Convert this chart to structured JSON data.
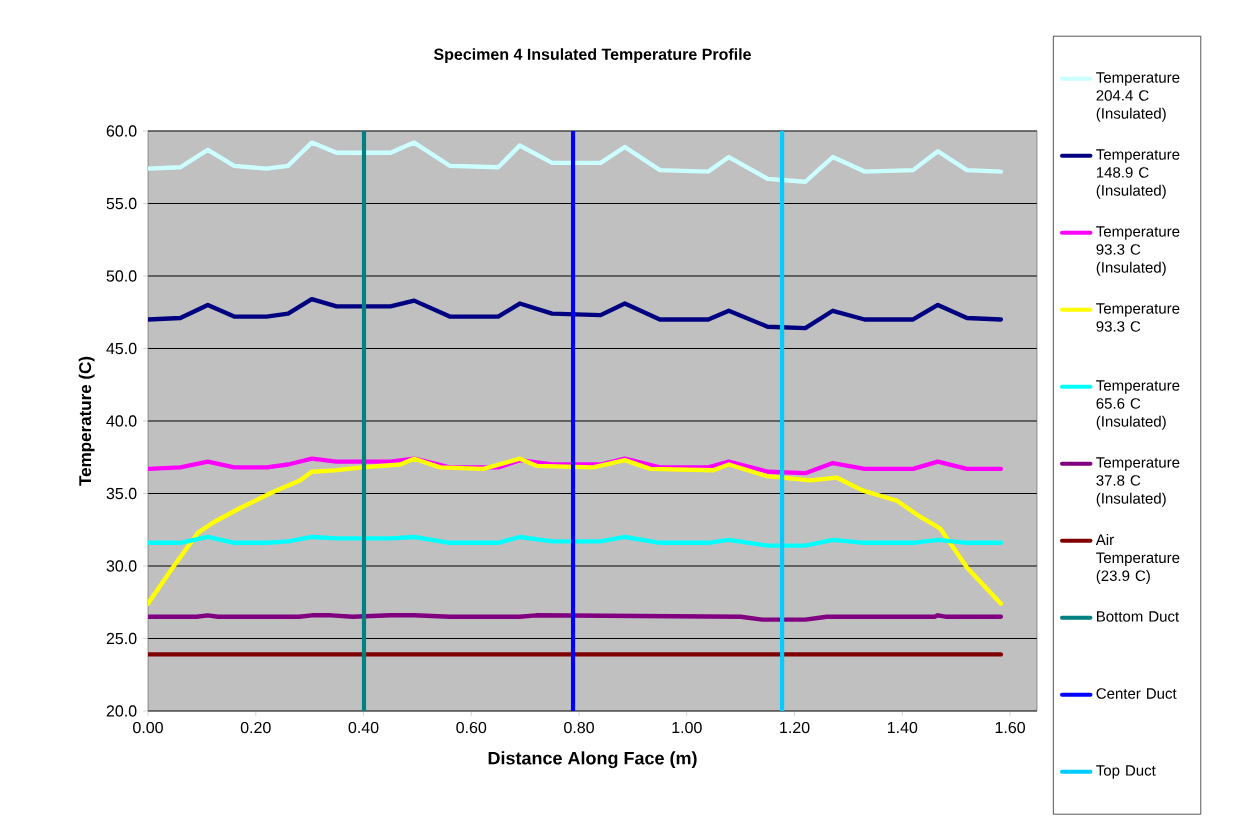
{
  "chart_data": {
    "type": "line",
    "title": "Specimen 4  Insulated Temperature Profile",
    "xlabel": "Distance Along Face (m)",
    "ylabel": "Temperature (C)",
    "xlim": [
      0,
      1.65
    ],
    "ylim": [
      20,
      60
    ],
    "xticks": [
      {
        "value": 0,
        "label": "0.00"
      },
      {
        "value": 0.2,
        "label": "0.20"
      },
      {
        "value": 0.4,
        "label": "0.40"
      },
      {
        "value": 0.6,
        "label": "0.60"
      },
      {
        "value": 0.8,
        "label": "0.80"
      },
      {
        "value": 1.0,
        "label": "1.00"
      },
      {
        "value": 1.2,
        "label": "1.20"
      },
      {
        "value": 1.4,
        "label": "1.40"
      },
      {
        "value": 1.6,
        "label": "1.60"
      }
    ],
    "yticks": [
      {
        "value": 20,
        "label": "20.0"
      },
      {
        "value": 25,
        "label": "25.0"
      },
      {
        "value": 30,
        "label": "30.0"
      },
      {
        "value": 35,
        "label": "35.0"
      },
      {
        "value": 40,
        "label": "40.0"
      },
      {
        "value": 45,
        "label": "45.0"
      },
      {
        "value": 50,
        "label": "50.0"
      },
      {
        "value": 55,
        "label": "55.0"
      },
      {
        "value": 60,
        "label": "60.0"
      }
    ],
    "grid": "y",
    "legend": "right",
    "series": [
      {
        "name": "Temperature 204.4 C (Insulated)",
        "color": "#ccffff",
        "x": [
          0,
          0.06,
          0.111,
          0.16,
          0.22,
          0.26,
          0.304,
          0.35,
          0.45,
          0.494,
          0.56,
          0.65,
          0.69,
          0.75,
          0.84,
          0.885,
          0.95,
          1.04,
          1.078,
          1.15,
          1.22,
          1.271,
          1.33,
          1.42,
          1.466,
          1.52,
          1.583
        ],
        "values": [
          57.4,
          57.5,
          58.7,
          57.6,
          57.4,
          57.6,
          59.2,
          58.5,
          58.5,
          59.2,
          57.6,
          57.5,
          59.0,
          57.8,
          57.8,
          58.9,
          57.3,
          57.2,
          58.2,
          56.7,
          56.5,
          58.2,
          57.2,
          57.3,
          58.6,
          57.3,
          57.2
        ]
      },
      {
        "name": "Temperature 148.9 C (Insulated)",
        "color": "#000080",
        "x": [
          0,
          0.06,
          0.111,
          0.16,
          0.22,
          0.26,
          0.304,
          0.35,
          0.45,
          0.494,
          0.56,
          0.65,
          0.69,
          0.75,
          0.84,
          0.885,
          0.95,
          1.04,
          1.078,
          1.15,
          1.22,
          1.271,
          1.33,
          1.42,
          1.466,
          1.52,
          1.583
        ],
        "values": [
          47.0,
          47.1,
          48.0,
          47.2,
          47.2,
          47.4,
          48.4,
          47.9,
          47.9,
          48.3,
          47.2,
          47.2,
          48.1,
          47.4,
          47.3,
          48.1,
          47.0,
          47.0,
          47.6,
          46.5,
          46.4,
          47.6,
          47.0,
          47.0,
          48.0,
          47.1,
          47.0
        ]
      },
      {
        "name": "Temperature 93.3 C (Insulated)",
        "color": "#ff00ff",
        "x": [
          0,
          0.06,
          0.111,
          0.16,
          0.22,
          0.26,
          0.304,
          0.35,
          0.45,
          0.494,
          0.56,
          0.65,
          0.69,
          0.75,
          0.84,
          0.885,
          0.95,
          1.04,
          1.078,
          1.15,
          1.22,
          1.271,
          1.33,
          1.42,
          1.466,
          1.52,
          1.583
        ],
        "values": [
          36.7,
          36.8,
          37.2,
          36.8,
          36.8,
          37.0,
          37.4,
          37.2,
          37.2,
          37.4,
          36.8,
          36.8,
          37.3,
          37.0,
          37.0,
          37.4,
          36.8,
          36.8,
          37.2,
          36.5,
          36.4,
          37.1,
          36.7,
          36.7,
          37.2,
          36.7,
          36.7
        ]
      },
      {
        "name": "Temperature 93.3 C",
        "color": "#ffff00",
        "x": [
          0,
          0.046,
          0.093,
          0.121,
          0.171,
          0.232,
          0.282,
          0.304,
          0.346,
          0.397,
          0.468,
          0.494,
          0.542,
          0.622,
          0.69,
          0.722,
          0.826,
          0.885,
          0.932,
          1.049,
          1.078,
          1.149,
          1.229,
          1.278,
          1.327,
          1.39,
          1.433,
          1.47,
          1.52,
          1.583
        ],
        "values": [
          27.4,
          29.9,
          32.3,
          33.0,
          34.0,
          35.1,
          35.9,
          36.5,
          36.6,
          36.8,
          37.0,
          37.4,
          36.8,
          36.7,
          37.4,
          36.9,
          36.8,
          37.3,
          36.7,
          36.6,
          37.0,
          36.2,
          35.9,
          36.1,
          35.2,
          34.5,
          33.4,
          32.6,
          29.9,
          27.4
        ]
      },
      {
        "name": "Temperature 65.6 C (Insulated)",
        "color": "#00ffff",
        "x": [
          0,
          0.06,
          0.111,
          0.16,
          0.22,
          0.26,
          0.304,
          0.35,
          0.45,
          0.494,
          0.56,
          0.65,
          0.69,
          0.75,
          0.84,
          0.885,
          0.95,
          1.04,
          1.078,
          1.15,
          1.22,
          1.271,
          1.33,
          1.42,
          1.466,
          1.52,
          1.583
        ],
        "values": [
          31.6,
          31.6,
          32.0,
          31.6,
          31.6,
          31.7,
          32.0,
          31.9,
          31.9,
          32.0,
          31.6,
          31.6,
          32.0,
          31.7,
          31.7,
          32.0,
          31.6,
          31.6,
          31.8,
          31.4,
          31.4,
          31.8,
          31.6,
          31.6,
          31.8,
          31.6,
          31.6
        ]
      },
      {
        "name": "Temperature 37.8 C (Insulated)",
        "color": "#800080",
        "x": [
          0,
          0.09,
          0.111,
          0.13,
          0.28,
          0.304,
          0.34,
          0.38,
          0.45,
          0.494,
          0.56,
          0.69,
          0.72,
          1.1,
          1.14,
          1.22,
          1.26,
          1.46,
          1.466,
          1.48,
          1.583
        ],
        "values": [
          26.5,
          26.5,
          26.6,
          26.5,
          26.5,
          26.6,
          26.6,
          26.5,
          26.6,
          26.6,
          26.5,
          26.5,
          26.6,
          26.5,
          26.3,
          26.3,
          26.5,
          26.5,
          26.6,
          26.5,
          26.5
        ]
      },
      {
        "name": "Air Temperature (23.9 C)",
        "color": "#800000",
        "x": [
          0,
          1.583
        ],
        "values": [
          23.9,
          23.9
        ]
      },
      {
        "name": "Bottom Duct",
        "color": "#008080",
        "x": [
          0.401,
          0.401
        ],
        "values": [
          20,
          60
        ]
      },
      {
        "name": "Center Duct",
        "color": "#0000ff",
        "x": [
          0.789,
          0.789
        ],
        "values": [
          20,
          60
        ]
      },
      {
        "name": "Top Duct",
        "color": "#00ccff",
        "x": [
          1.177,
          1.177
        ],
        "values": [
          20,
          60
        ]
      }
    ]
  }
}
